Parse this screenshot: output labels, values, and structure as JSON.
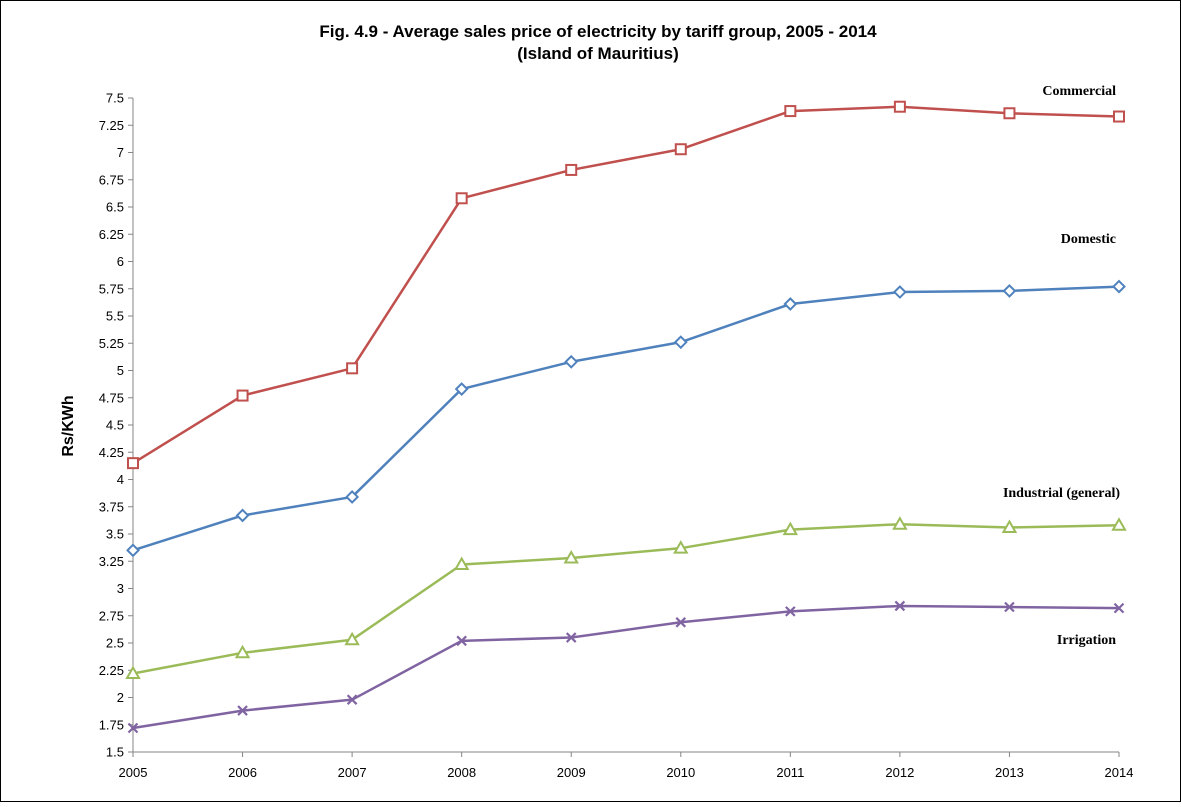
{
  "chart_data": {
    "type": "line",
    "title": "Fig. 4.9 - Average sales price of electricity by tariff group,  2005 - 2014",
    "subtitle": "(Island of Mauritius)",
    "xlabel": "",
    "ylabel": "Rs/KWh",
    "x": [
      "2005",
      "2006",
      "2007",
      "2008",
      "2009",
      "2010",
      "2011",
      "2012",
      "2013",
      "2014"
    ],
    "ylim": [
      1.5,
      7.5
    ],
    "yticks": [
      "1.5",
      "1.75",
      "2",
      "2.25",
      "2.5",
      "2.75",
      "3",
      "3.25",
      "3.5",
      "3.75",
      "4",
      "4.25",
      "4.5",
      "4.75",
      "5",
      "5.25",
      "5.5",
      "5.75",
      "6",
      "6.25",
      "6.5",
      "6.75",
      "7",
      "7.25",
      "7.5"
    ],
    "grid": false,
    "legend": "labels beside lines",
    "series": [
      {
        "name": "Commercial",
        "color": "#c0504d",
        "marker": "square",
        "values": [
          4.15,
          4.77,
          5.02,
          6.58,
          6.84,
          7.03,
          7.38,
          7.42,
          7.36,
          7.33
        ]
      },
      {
        "name": "Domestic",
        "color": "#4f81bd",
        "marker": "diamond",
        "values": [
          3.35,
          3.67,
          3.84,
          4.83,
          5.08,
          5.26,
          5.61,
          5.72,
          5.73,
          5.77
        ]
      },
      {
        "name": "Industrial (general)",
        "color": "#9bbb59",
        "marker": "triangle",
        "values": [
          2.22,
          2.41,
          2.53,
          3.22,
          3.28,
          3.37,
          3.54,
          3.59,
          3.56,
          3.58
        ]
      },
      {
        "name": "Irrigation",
        "color": "#8064a2",
        "marker": "x",
        "values": [
          1.72,
          1.88,
          1.98,
          2.52,
          2.55,
          2.69,
          2.79,
          2.84,
          2.83,
          2.82
        ]
      }
    ]
  }
}
